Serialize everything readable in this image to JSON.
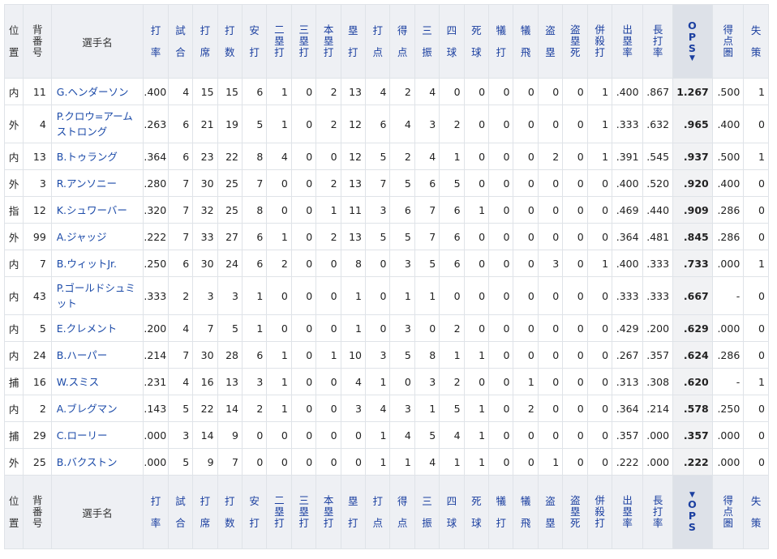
{
  "columns": {
    "pos": "位置",
    "num": "背番号",
    "name": "選手名",
    "avg": "打率",
    "g": "試合",
    "pa": "打席",
    "ab": "打数",
    "h": "安打",
    "d": "二塁打",
    "t": "三塁打",
    "hr": "本塁打",
    "tb": "塁打",
    "rbi": "打点",
    "r": "得点",
    "so": "三振",
    "bb": "四球",
    "hbp": "死球",
    "sh": "犠打",
    "sf": "犠飛",
    "sb": "盗塁",
    "cs": "盗塁死",
    "gdp": "併殺打",
    "obp": "出塁率",
    "slg": "長打率",
    "ops": "OPS",
    "risp": "得点圏",
    "e": "失策"
  },
  "sort": {
    "column": "ops",
    "indicator": "▼"
  },
  "rows": [
    {
      "pos": "内",
      "num": "11",
      "name": "G.ヘンダーソン",
      "avg": ".400",
      "g": "4",
      "pa": "15",
      "ab": "15",
      "h": "6",
      "d": "1",
      "t": "0",
      "hr": "2",
      "tb": "13",
      "rbi": "4",
      "r": "2",
      "so": "4",
      "bb": "0",
      "hbp": "0",
      "sh": "0",
      "sf": "0",
      "sb": "0",
      "cs": "0",
      "gdp": "1",
      "obp": ".400",
      "slg": ".867",
      "ops": "1.267",
      "risp": ".500",
      "e": "1"
    },
    {
      "pos": "外",
      "num": "4",
      "name": "P.クロウ=アームストロング",
      "avg": ".263",
      "g": "6",
      "pa": "21",
      "ab": "19",
      "h": "5",
      "d": "1",
      "t": "0",
      "hr": "2",
      "tb": "12",
      "rbi": "6",
      "r": "4",
      "so": "3",
      "bb": "2",
      "hbp": "0",
      "sh": "0",
      "sf": "0",
      "sb": "0",
      "cs": "0",
      "gdp": "1",
      "obp": ".333",
      "slg": ".632",
      "ops": ".965",
      "risp": ".400",
      "e": "0"
    },
    {
      "pos": "内",
      "num": "13",
      "name": "B.トゥラング",
      "avg": ".364",
      "g": "6",
      "pa": "23",
      "ab": "22",
      "h": "8",
      "d": "4",
      "t": "0",
      "hr": "0",
      "tb": "12",
      "rbi": "5",
      "r": "2",
      "so": "4",
      "bb": "1",
      "hbp": "0",
      "sh": "0",
      "sf": "0",
      "sb": "2",
      "cs": "0",
      "gdp": "1",
      "obp": ".391",
      "slg": ".545",
      "ops": ".937",
      "risp": ".500",
      "e": "1"
    },
    {
      "pos": "外",
      "num": "3",
      "name": "R.アンソニー",
      "avg": ".280",
      "g": "7",
      "pa": "30",
      "ab": "25",
      "h": "7",
      "d": "0",
      "t": "0",
      "hr": "2",
      "tb": "13",
      "rbi": "7",
      "r": "5",
      "so": "6",
      "bb": "5",
      "hbp": "0",
      "sh": "0",
      "sf": "0",
      "sb": "0",
      "cs": "0",
      "gdp": "0",
      "obp": ".400",
      "slg": ".520",
      "ops": ".920",
      "risp": ".400",
      "e": "0"
    },
    {
      "pos": "指",
      "num": "12",
      "name": "K.シュワーバー",
      "avg": ".320",
      "g": "7",
      "pa": "32",
      "ab": "25",
      "h": "8",
      "d": "0",
      "t": "0",
      "hr": "1",
      "tb": "11",
      "rbi": "3",
      "r": "6",
      "so": "7",
      "bb": "6",
      "hbp": "1",
      "sh": "0",
      "sf": "0",
      "sb": "0",
      "cs": "0",
      "gdp": "0",
      "obp": ".469",
      "slg": ".440",
      "ops": ".909",
      "risp": ".286",
      "e": "0"
    },
    {
      "pos": "外",
      "num": "99",
      "name": "A.ジャッジ",
      "avg": ".222",
      "g": "7",
      "pa": "33",
      "ab": "27",
      "h": "6",
      "d": "1",
      "t": "0",
      "hr": "2",
      "tb": "13",
      "rbi": "5",
      "r": "5",
      "so": "7",
      "bb": "6",
      "hbp": "0",
      "sh": "0",
      "sf": "0",
      "sb": "0",
      "cs": "0",
      "gdp": "0",
      "obp": ".364",
      "slg": ".481",
      "ops": ".845",
      "risp": ".286",
      "e": "0"
    },
    {
      "pos": "内",
      "num": "7",
      "name": "B.ウィットJr.",
      "avg": ".250",
      "g": "6",
      "pa": "30",
      "ab": "24",
      "h": "6",
      "d": "2",
      "t": "0",
      "hr": "0",
      "tb": "8",
      "rbi": "0",
      "r": "3",
      "so": "5",
      "bb": "6",
      "hbp": "0",
      "sh": "0",
      "sf": "0",
      "sb": "3",
      "cs": "0",
      "gdp": "1",
      "obp": ".400",
      "slg": ".333",
      "ops": ".733",
      "risp": ".000",
      "e": "1"
    },
    {
      "pos": "内",
      "num": "43",
      "name": "P.ゴールドシュミット",
      "avg": ".333",
      "g": "2",
      "pa": "3",
      "ab": "3",
      "h": "1",
      "d": "0",
      "t": "0",
      "hr": "0",
      "tb": "1",
      "rbi": "0",
      "r": "1",
      "so": "1",
      "bb": "0",
      "hbp": "0",
      "sh": "0",
      "sf": "0",
      "sb": "0",
      "cs": "0",
      "gdp": "0",
      "obp": ".333",
      "slg": ".333",
      "ops": ".667",
      "risp": "-",
      "e": "0"
    },
    {
      "pos": "内",
      "num": "5",
      "name": "E.クレメント",
      "avg": ".200",
      "g": "4",
      "pa": "7",
      "ab": "5",
      "h": "1",
      "d": "0",
      "t": "0",
      "hr": "0",
      "tb": "1",
      "rbi": "0",
      "r": "3",
      "so": "0",
      "bb": "2",
      "hbp": "0",
      "sh": "0",
      "sf": "0",
      "sb": "0",
      "cs": "0",
      "gdp": "0",
      "obp": ".429",
      "slg": ".200",
      "ops": ".629",
      "risp": ".000",
      "e": "0"
    },
    {
      "pos": "内",
      "num": "24",
      "name": "B.ハーパー",
      "avg": ".214",
      "g": "7",
      "pa": "30",
      "ab": "28",
      "h": "6",
      "d": "1",
      "t": "0",
      "hr": "1",
      "tb": "10",
      "rbi": "3",
      "r": "5",
      "so": "8",
      "bb": "1",
      "hbp": "1",
      "sh": "0",
      "sf": "0",
      "sb": "0",
      "cs": "0",
      "gdp": "0",
      "obp": ".267",
      "slg": ".357",
      "ops": ".624",
      "risp": ".286",
      "e": "0"
    },
    {
      "pos": "捕",
      "num": "16",
      "name": "W.スミス",
      "avg": ".231",
      "g": "4",
      "pa": "16",
      "ab": "13",
      "h": "3",
      "d": "1",
      "t": "0",
      "hr": "0",
      "tb": "4",
      "rbi": "1",
      "r": "0",
      "so": "3",
      "bb": "2",
      "hbp": "0",
      "sh": "0",
      "sf": "1",
      "sb": "0",
      "cs": "0",
      "gdp": "0",
      "obp": ".313",
      "slg": ".308",
      "ops": ".620",
      "risp": "-",
      "e": "1"
    },
    {
      "pos": "内",
      "num": "2",
      "name": "A.ブレグマン",
      "avg": ".143",
      "g": "5",
      "pa": "22",
      "ab": "14",
      "h": "2",
      "d": "1",
      "t": "0",
      "hr": "0",
      "tb": "3",
      "rbi": "4",
      "r": "3",
      "so": "1",
      "bb": "5",
      "hbp": "1",
      "sh": "0",
      "sf": "2",
      "sb": "0",
      "cs": "0",
      "gdp": "0",
      "obp": ".364",
      "slg": ".214",
      "ops": ".578",
      "risp": ".250",
      "e": "0"
    },
    {
      "pos": "捕",
      "num": "29",
      "name": "C.ローリー",
      "avg": ".000",
      "g": "3",
      "pa": "14",
      "ab": "9",
      "h": "0",
      "d": "0",
      "t": "0",
      "hr": "0",
      "tb": "0",
      "rbi": "1",
      "r": "4",
      "so": "5",
      "bb": "4",
      "hbp": "1",
      "sh": "0",
      "sf": "0",
      "sb": "0",
      "cs": "0",
      "gdp": "0",
      "obp": ".357",
      "slg": ".000",
      "ops": ".357",
      "risp": ".000",
      "e": "0"
    },
    {
      "pos": "外",
      "num": "25",
      "name": "B.バクストン",
      "avg": ".000",
      "g": "5",
      "pa": "9",
      "ab": "7",
      "h": "0",
      "d": "0",
      "t": "0",
      "hr": "0",
      "tb": "0",
      "rbi": "1",
      "r": "1",
      "so": "4",
      "bb": "1",
      "hbp": "1",
      "sh": "0",
      "sf": "0",
      "sb": "1",
      "cs": "0",
      "gdp": "0",
      "obp": ".222",
      "slg": ".000",
      "ops": ".222",
      "risp": ".000",
      "e": "0"
    }
  ]
}
